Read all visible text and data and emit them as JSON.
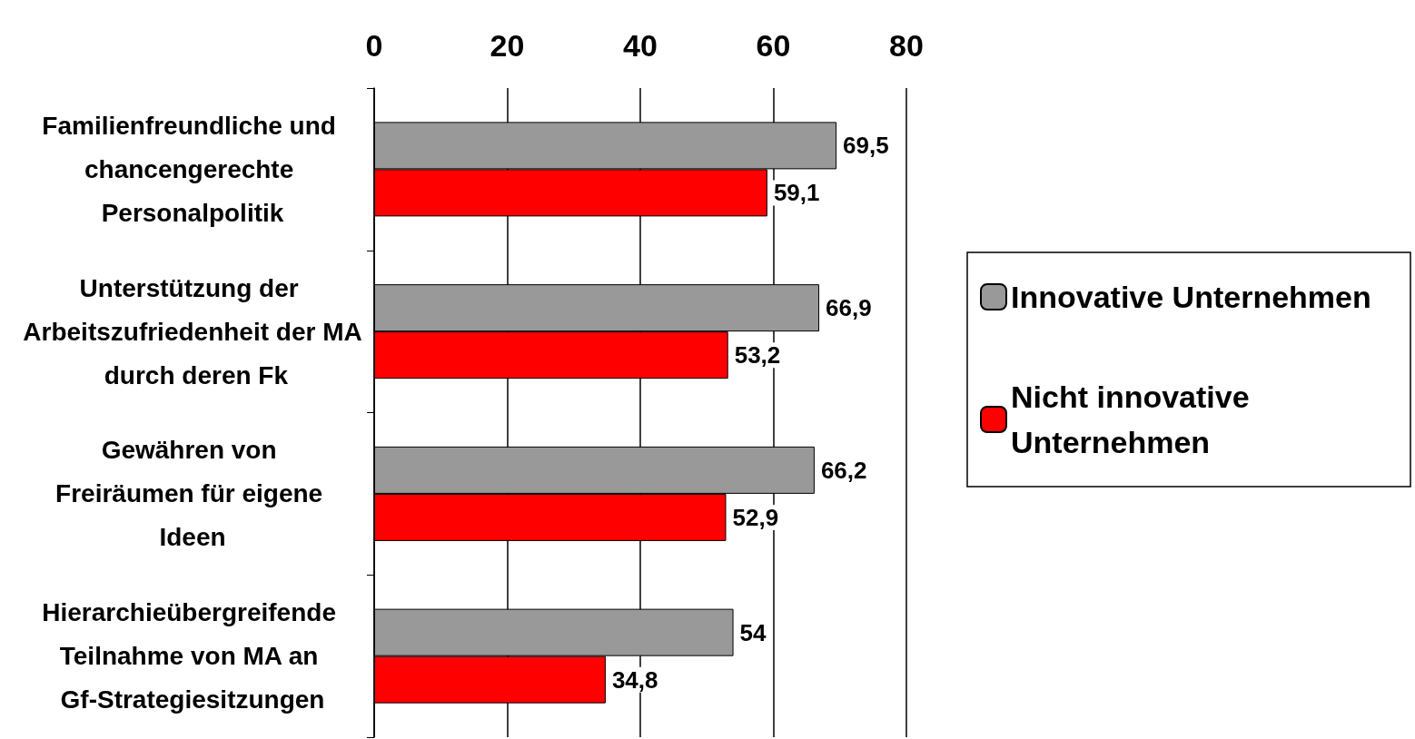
{
  "chart_data": {
    "type": "bar",
    "orientation": "horizontal",
    "categories": [
      "Familienfreundliche und chancengerechte Personalpolitik",
      "Unterstützung der Arbeitszufriedenheit der MA durch deren Fk",
      "Gewähren von Freiräumen für eigene Ideen",
      "Hierarchieübergreifende Teilnahme von MA an Gf-Strategiesitzungen"
    ],
    "series": [
      {
        "name": "Innovative Unternehmen",
        "color": "#999999",
        "values": [
          69.5,
          66.9,
          66.2,
          54
        ],
        "value_labels": [
          "69,5",
          "66,9",
          "66,2",
          "54"
        ]
      },
      {
        "name": "Nicht innovative Unternehmen",
        "color": "#ff0000",
        "values": [
          59.1,
          53.2,
          52.9,
          34.8
        ],
        "value_labels": [
          "59,1",
          "53,2",
          "52,9",
          "34,8"
        ]
      }
    ],
    "xlim": [
      0,
      80
    ],
    "xticks": [
      0,
      20,
      40,
      60,
      80
    ],
    "grid": "x",
    "legend": "right"
  }
}
